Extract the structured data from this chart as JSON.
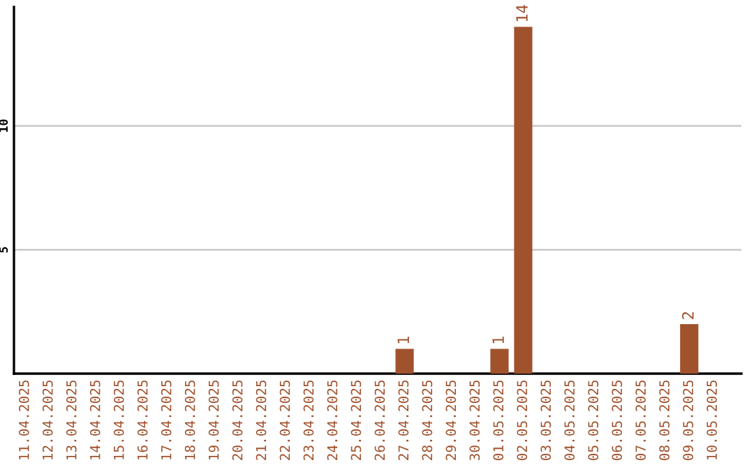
{
  "chart_data": {
    "type": "bar",
    "categories": [
      "11.04.2025",
      "12.04.2025",
      "13.04.2025",
      "14.04.2025",
      "15.04.2025",
      "16.04.2025",
      "17.04.2025",
      "18.04.2025",
      "19.04.2025",
      "20.04.2025",
      "21.04.2025",
      "22.04.2025",
      "23.04.2025",
      "24.04.2025",
      "25.04.2025",
      "26.04.2025",
      "27.04.2025",
      "28.04.2025",
      "29.04.2025",
      "30.04.2025",
      "01.05.2025",
      "02.05.2025",
      "03.05.2025",
      "04.05.2025",
      "05.05.2025",
      "06.05.2025",
      "07.05.2025",
      "08.05.2025",
      "09.05.2025",
      "10.05.2025"
    ],
    "values": [
      0,
      0,
      0,
      0,
      0,
      0,
      0,
      0,
      0,
      0,
      0,
      0,
      0,
      0,
      0,
      0,
      1,
      0,
      0,
      0,
      1,
      14,
      0,
      0,
      0,
      0,
      0,
      0,
      2,
      0
    ],
    "value_labels": [
      null,
      null,
      null,
      null,
      null,
      null,
      null,
      null,
      null,
      null,
      null,
      null,
      null,
      null,
      null,
      null,
      "1",
      null,
      null,
      null,
      "1",
      "14",
      null,
      null,
      null,
      null,
      null,
      null,
      "2",
      null
    ],
    "color": "#a0522d",
    "ylim": [
      0,
      14.8
    ],
    "yticks": [
      5,
      10
    ],
    "grid": "y",
    "legend": false
  }
}
